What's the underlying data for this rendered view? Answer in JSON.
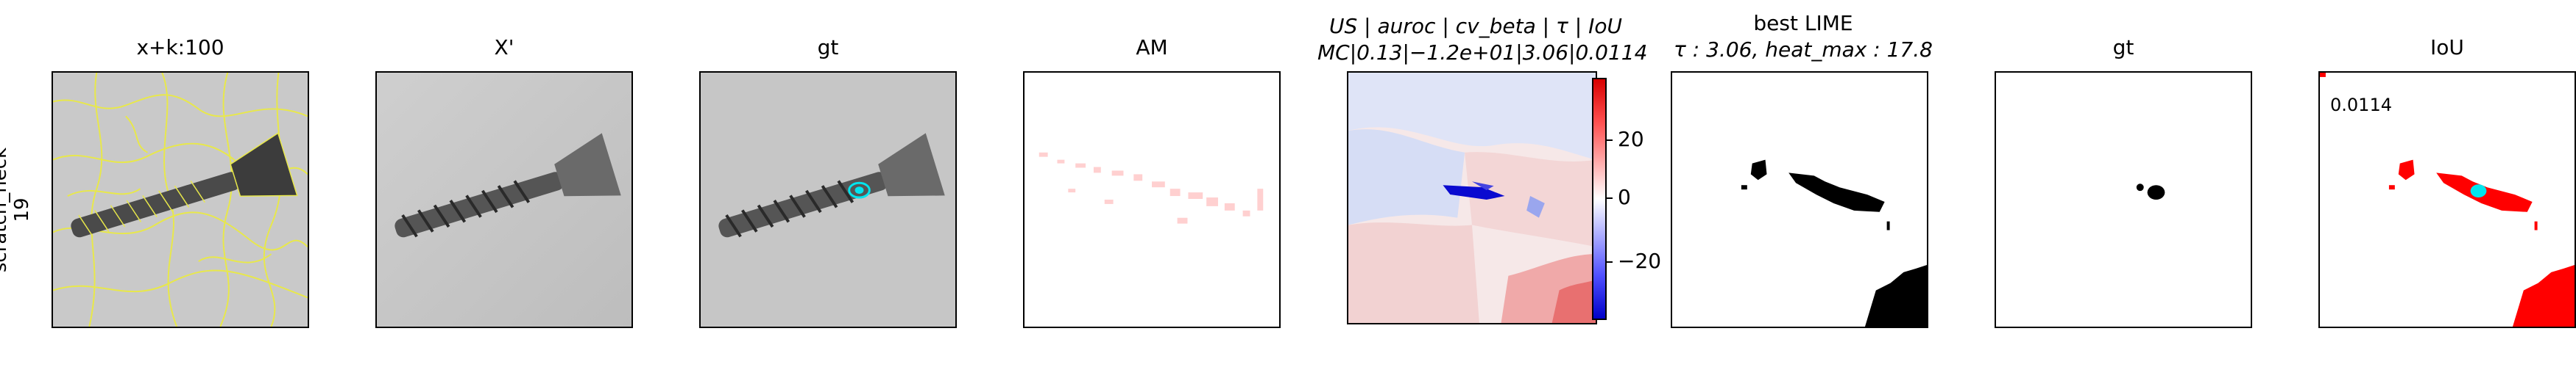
{
  "row_label": {
    "line1": "scratch_neck",
    "line2": "19"
  },
  "panels": [
    {
      "title": "x+k:100",
      "icon": "screw-with-superpixel-boundaries"
    },
    {
      "title": "X'",
      "icon": "screw-image"
    },
    {
      "title": "gt",
      "icon": "screw-with-cyan-gt-overlay"
    },
    {
      "title": "AM",
      "icon": "faint-red-attribution-map"
    },
    {
      "title_line1": "US | auroc | cv_beta | τ | IoU",
      "title_line2": "MC|0.13|−1.2e+01|3.06|0.0114",
      "icon": "red-blue-heatmap"
    },
    {
      "title_line1": "best LIME",
      "title_line2": "τ : 3.06, heat_max : 17.8",
      "icon": "binary-lime-mask"
    },
    {
      "title": "gt",
      "icon": "binary-gt-mask"
    },
    {
      "title": "IoU",
      "value": "0.0114",
      "icon": "iou-overlay"
    }
  ],
  "colorbar": {
    "ticks": [
      "20",
      "0",
      "−20"
    ],
    "colors": {
      "max": "#d70000",
      "mid": "#ffffff",
      "min": "#0000c8"
    }
  },
  "colors": {
    "superpixel": "#e8e84a",
    "gt": "#00e5ee",
    "attribution": "#ff0000"
  }
}
